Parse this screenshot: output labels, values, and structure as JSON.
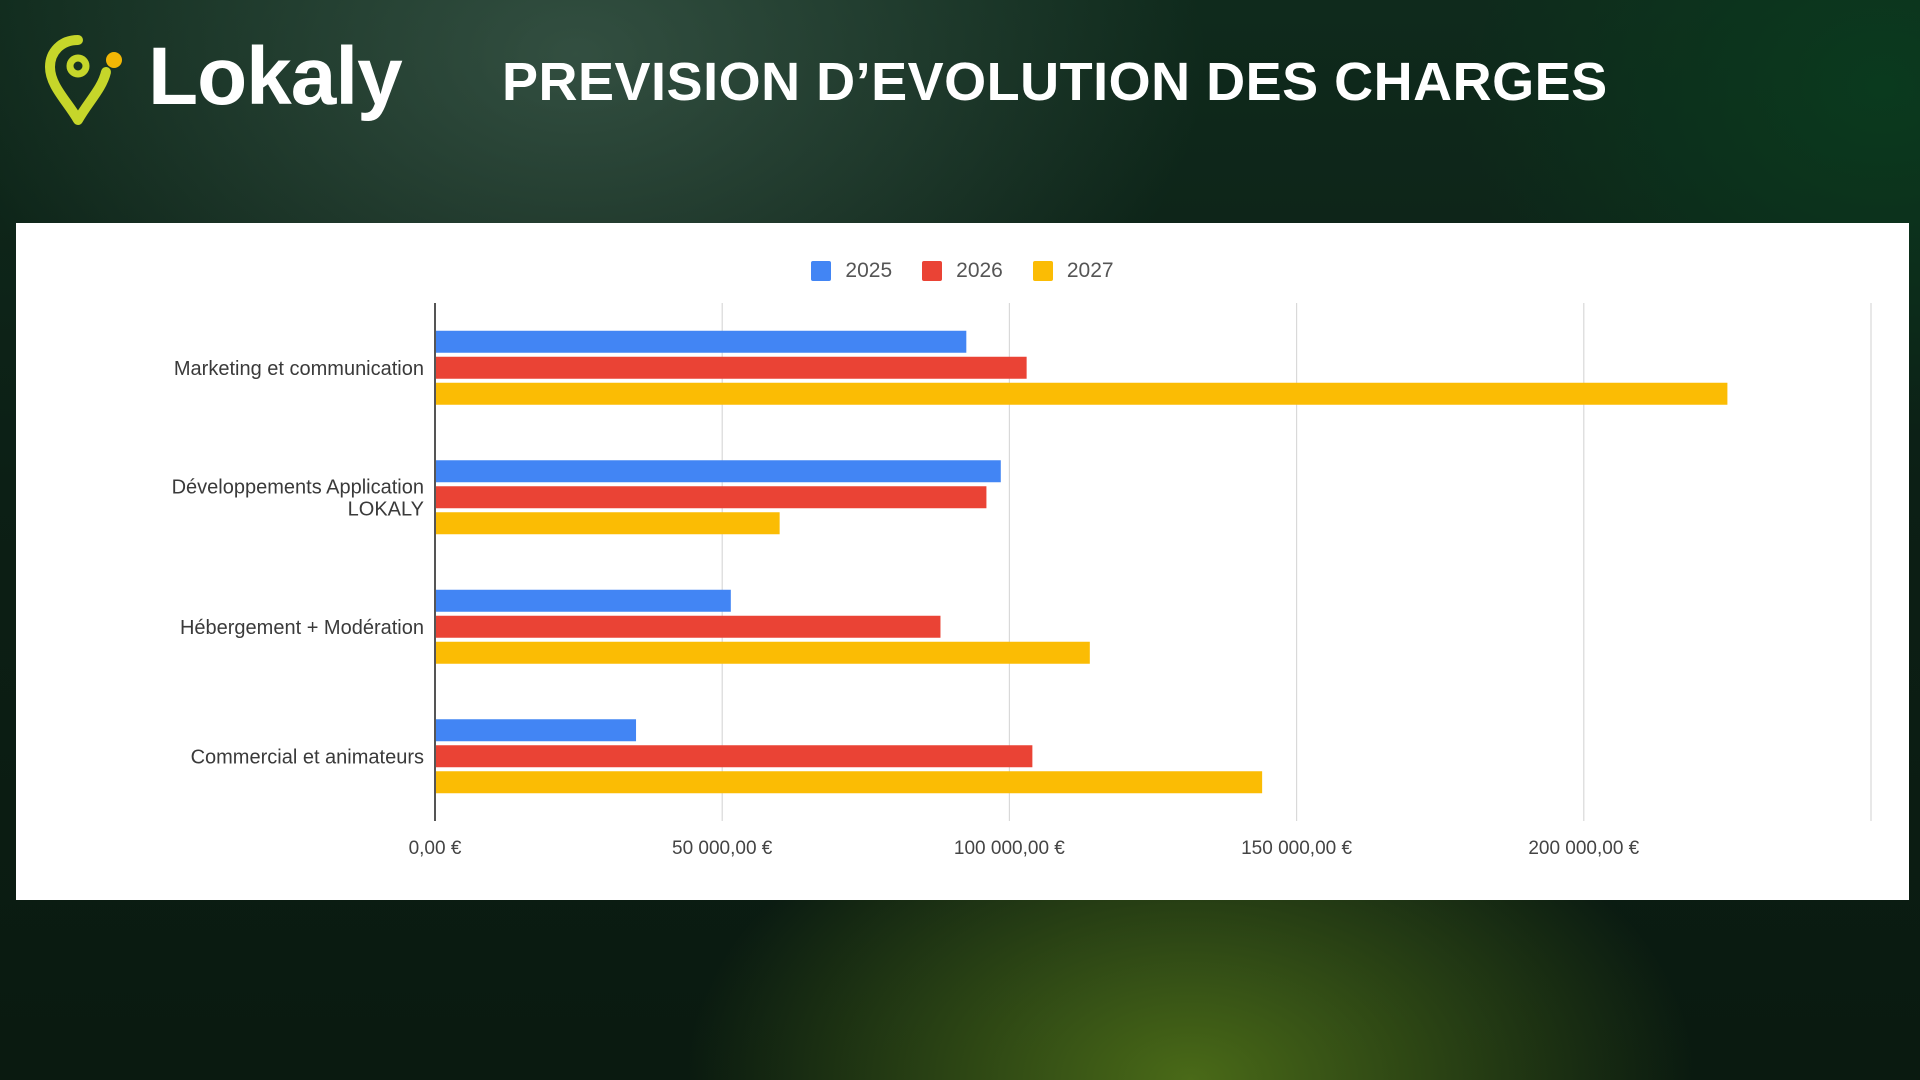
{
  "brand": {
    "name": "Lokaly",
    "logo_icon": "map-pin-icon",
    "colors": {
      "pin": "#c6d62a",
      "dot": "#f2b705"
    }
  },
  "header": {
    "title": "PREVISION D’EVOLUTION DES CHARGES"
  },
  "chart_data": {
    "type": "bar",
    "orientation": "horizontal",
    "title": "",
    "xlabel": "",
    "ylabel": "",
    "categories": [
      [
        "Marketing et communication"
      ],
      [
        "Développements Application",
        "LOKALY"
      ],
      [
        "Hébergement + Modération"
      ],
      [
        "Commercial et animateurs"
      ]
    ],
    "series": [
      {
        "name": "2025",
        "color": "#4285f4",
        "values": [
          92500,
          98500,
          51500,
          35000
        ]
      },
      {
        "name": "2026",
        "color": "#ea4335",
        "values": [
          103000,
          96000,
          88000,
          104000
        ]
      },
      {
        "name": "2027",
        "color": "#fbbc04",
        "values": [
          225000,
          60000,
          114000,
          144000
        ]
      }
    ],
    "xlim": [
      0,
      250000
    ],
    "xticks": [
      0,
      50000,
      100000,
      150000,
      200000
    ],
    "xtick_labels": [
      "0,00 €",
      "50 000,00 €",
      "100 000,00 €",
      "150 000,00 €",
      "200 000,00 €"
    ],
    "grid": true,
    "legend_position": "top-center"
  }
}
